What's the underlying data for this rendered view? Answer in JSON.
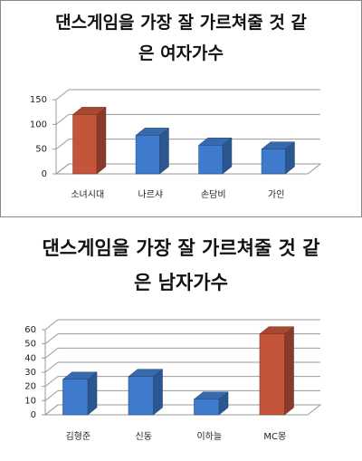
{
  "chart_data": [
    {
      "type": "bar3d",
      "title": "댄스게임을 가장 잘 가르쳐줄 것 같은 여자가수",
      "categories": [
        "소녀시대",
        "나르샤",
        "손담비",
        "가인"
      ],
      "values": [
        120,
        78,
        58,
        50
      ],
      "colors": [
        "#c4553a",
        "#3f7bcc",
        "#3f7bcc",
        "#3f7bcc"
      ],
      "ylim": [
        0,
        150
      ],
      "yticks": [
        0,
        50,
        100,
        150
      ],
      "grid": true
    },
    {
      "type": "bar3d",
      "title": "댄스게임을 가장 잘 가르쳐줄 것 같은 남자가수",
      "categories": [
        "김형준",
        "신동",
        "이하늘",
        "MC몽"
      ],
      "values": [
        25,
        27,
        11,
        57
      ],
      "colors": [
        "#3f7bcc",
        "#3f7bcc",
        "#3f7bcc",
        "#c4553a"
      ],
      "ylim": [
        0,
        60
      ],
      "yticks": [
        0,
        10,
        20,
        30,
        40,
        50,
        60
      ],
      "grid": true
    }
  ]
}
